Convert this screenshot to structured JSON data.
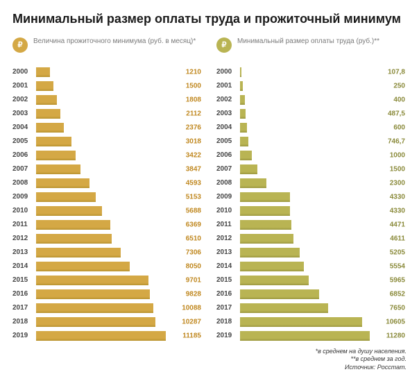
{
  "title": "Минимальный размер оплаты труда и прожиточный минимум",
  "footnote": {
    "line1": "*в среднем на душу населения.",
    "line2": "**в среднем за год.",
    "line3": "Источник: Росстат."
  },
  "chart_left": {
    "label": "Величина прожиточного минимума (руб. в месяц)*",
    "icon_bg": "#d4a845",
    "icon_glyph": "₽",
    "bar_color": "#d4a845",
    "bar_shadow": "#b8922f",
    "value_color": "#c08820",
    "max_value": 11185,
    "rows": [
      {
        "year": "2000",
        "value": 1210,
        "label": "1210"
      },
      {
        "year": "2001",
        "value": 1500,
        "label": "1500"
      },
      {
        "year": "2002",
        "value": 1808,
        "label": "1808"
      },
      {
        "year": "2003",
        "value": 2112,
        "label": "2112"
      },
      {
        "year": "2004",
        "value": 2376,
        "label": "2376"
      },
      {
        "year": "2005",
        "value": 3018,
        "label": "3018"
      },
      {
        "year": "2006",
        "value": 3422,
        "label": "3422"
      },
      {
        "year": "2007",
        "value": 3847,
        "label": "3847"
      },
      {
        "year": "2008",
        "value": 4593,
        "label": "4593"
      },
      {
        "year": "2009",
        "value": 5153,
        "label": "5153"
      },
      {
        "year": "2010",
        "value": 5688,
        "label": "5688"
      },
      {
        "year": "2011",
        "value": 6369,
        "label": "6369"
      },
      {
        "year": "2012",
        "value": 6510,
        "label": "6510"
      },
      {
        "year": "2013",
        "value": 7306,
        "label": "7306"
      },
      {
        "year": "2014",
        "value": 8050,
        "label": "8050"
      },
      {
        "year": "2015",
        "value": 9701,
        "label": "9701"
      },
      {
        "year": "2016",
        "value": 9828,
        "label": "9828"
      },
      {
        "year": "2017",
        "value": 10088,
        "label": "10088"
      },
      {
        "year": "2018",
        "value": 10287,
        "label": "10287"
      },
      {
        "year": "2019",
        "value": 11185,
        "label": "11185"
      }
    ]
  },
  "chart_right": {
    "label": "Минимальный размер оплаты труда (руб.)**",
    "icon_bg": "#b9b453",
    "icon_glyph": "₽",
    "bar_color": "#b9b453",
    "bar_shadow": "#9c9840",
    "value_color": "#8a8a3a",
    "max_value": 11280,
    "rows": [
      {
        "year": "2000",
        "value": 107.8,
        "label": "107,8"
      },
      {
        "year": "2001",
        "value": 250,
        "label": "250"
      },
      {
        "year": "2002",
        "value": 400,
        "label": "400"
      },
      {
        "year": "2003",
        "value": 487.5,
        "label": "487,5"
      },
      {
        "year": "2004",
        "value": 600,
        "label": "600"
      },
      {
        "year": "2005",
        "value": 746.7,
        "label": "746,7"
      },
      {
        "year": "2006",
        "value": 1000,
        "label": "1000"
      },
      {
        "year": "2007",
        "value": 1500,
        "label": "1500"
      },
      {
        "year": "2008",
        "value": 2300,
        "label": "2300"
      },
      {
        "year": "2009",
        "value": 4330,
        "label": "4330"
      },
      {
        "year": "2010",
        "value": 4330,
        "label": "4330"
      },
      {
        "year": "2011",
        "value": 4471,
        "label": "4471"
      },
      {
        "year": "2012",
        "value": 4611,
        "label": "4611"
      },
      {
        "year": "2013",
        "value": 5205,
        "label": "5205"
      },
      {
        "year": "2014",
        "value": 5554,
        "label": "5554"
      },
      {
        "year": "2015",
        "value": 5965,
        "label": "5965"
      },
      {
        "year": "2016",
        "value": 6852,
        "label": "6852"
      },
      {
        "year": "2017",
        "value": 7650,
        "label": "7650"
      },
      {
        "year": "2018",
        "value": 10605,
        "label": "10605"
      },
      {
        "year": "2019",
        "value": 11280,
        "label": "11280"
      }
    ]
  }
}
